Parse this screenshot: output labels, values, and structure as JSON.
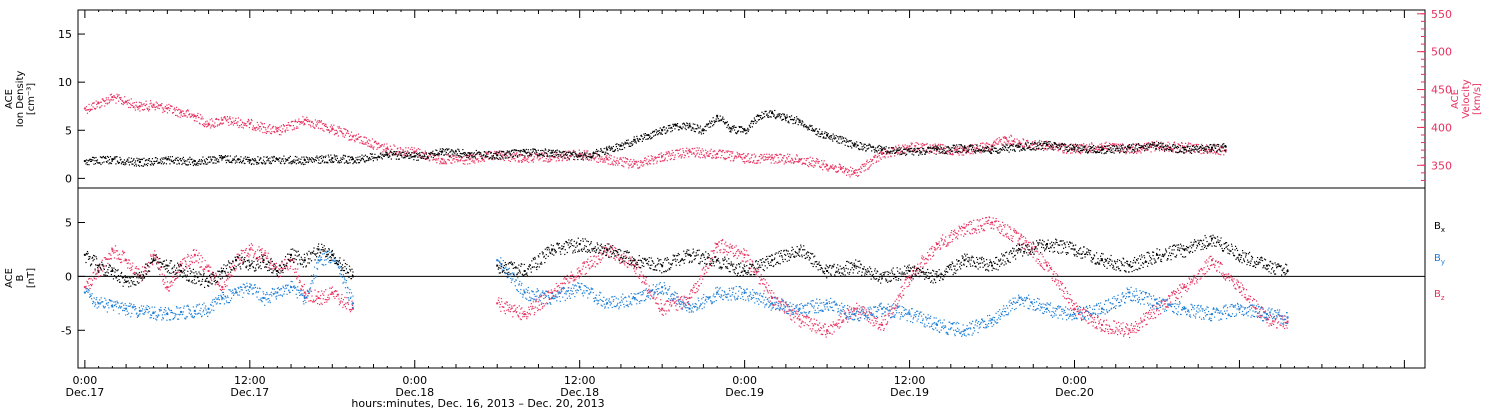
{
  "figure": {
    "xlabel": "hours:minutes, Dec. 16, 2013 – Dec. 20, 2013",
    "x_tick_times": [
      "0:00",
      "12:00",
      "0:00",
      "12:00",
      "0:00",
      "12:00",
      "0:00"
    ],
    "x_tick_dates": [
      "Dec.17",
      "Dec.17",
      "Dec.18",
      "Dec.18",
      "Dec.19",
      "Dec.19",
      "Dec.20"
    ],
    "colors": {
      "black": "#000000",
      "red": "#e8315f",
      "blue": "#1e7fd6"
    }
  },
  "chart_data": [
    {
      "type": "scatter",
      "panel": "ion-density-and-velocity",
      "left_axis_label_lines": [
        "ACE",
        "Ion Density",
        "[cm⁻³]"
      ],
      "right_axis_label_lines": [
        "ACE",
        "Velocity",
        "[km/s]"
      ],
      "left_ylim": [
        -1,
        17.5
      ],
      "left_ticks": [
        0,
        5,
        10,
        15
      ],
      "right_ylim": [
        320,
        555
      ],
      "right_ticks": [
        350,
        400,
        450,
        500,
        550
      ],
      "xlim_hours": [
        -0.5,
        97.5
      ],
      "series": [
        {
          "name": "Ion Density",
          "axis": "left",
          "color": "#000000",
          "x": [
            0,
            2,
            4,
            6,
            8,
            10,
            12,
            14,
            16,
            18,
            19.5,
            22,
            24,
            26,
            28,
            30,
            32,
            34,
            36,
            37,
            38,
            39,
            40,
            41,
            42,
            43,
            44,
            45,
            46,
            47,
            48,
            49,
            50,
            51,
            52,
            53,
            54,
            56,
            58,
            60,
            62,
            64,
            66,
            68,
            70,
            72,
            74,
            76,
            78,
            80,
            82,
            83
          ],
          "y": [
            1.8,
            2.0,
            1.7,
            2.0,
            1.8,
            2.1,
            1.9,
            2.0,
            1.9,
            2.1,
            2.0,
            2.5,
            2.3,
            2.8,
            2.6,
            2.4,
            2.8,
            2.7,
            2.3,
            2.6,
            3.0,
            3.4,
            4.0,
            4.5,
            5.0,
            5.5,
            5.5,
            5.0,
            6.5,
            5.2,
            5.0,
            6.5,
            6.8,
            6.3,
            6.0,
            5.0,
            4.5,
            3.5,
            3.0,
            2.8,
            3.0,
            3.2,
            3.0,
            3.3,
            3.5,
            3.2,
            3.0,
            3.2,
            3.4,
            3.0,
            3.2,
            3.3
          ]
        },
        {
          "name": "Velocity",
          "axis": "right",
          "color": "#e8315f",
          "x": [
            0,
            1,
            2,
            3,
            4,
            5,
            6,
            7,
            8,
            9,
            10,
            12,
            14,
            16,
            18,
            19.5,
            22,
            24,
            26,
            28,
            30,
            32,
            34,
            36,
            38,
            40,
            42,
            44,
            46,
            48,
            50,
            52,
            54,
            55,
            56,
            58,
            60,
            62,
            64,
            66,
            67,
            68,
            70,
            72,
            74,
            76,
            78,
            80,
            82,
            83
          ],
          "y": [
            425,
            432,
            440,
            434,
            428,
            430,
            425,
            420,
            415,
            405,
            410,
            405,
            395,
            410,
            398,
            388,
            372,
            368,
            358,
            358,
            364,
            360,
            362,
            365,
            358,
            352,
            362,
            368,
            365,
            360,
            360,
            358,
            350,
            345,
            340,
            365,
            375,
            372,
            370,
            376,
            386,
            380,
            376,
            372,
            375,
            372,
            376,
            374,
            372,
            370
          ]
        }
      ]
    },
    {
      "type": "scatter",
      "panel": "magnetic-field",
      "left_axis_label_lines": [
        "ACE",
        "B",
        "[nT]"
      ],
      "ylim": [
        -8.5,
        8.2
      ],
      "y_ticks": [
        -5,
        0,
        5
      ],
      "xlim_hours": [
        -0.5,
        97.5
      ],
      "series": [
        {
          "name": "Bx",
          "label_main": "B",
          "label_sub": "x",
          "color": "#000000",
          "x": [
            0,
            1,
            2,
            3,
            4,
            5,
            6,
            7,
            8,
            9,
            10,
            11,
            12,
            13,
            14,
            15,
            16,
            17,
            18,
            19.5,
            30,
            32,
            34,
            36,
            38,
            40,
            42,
            44,
            46,
            48,
            50,
            52,
            54,
            56,
            58,
            60,
            62,
            64,
            66,
            68,
            70,
            72,
            74,
            76,
            78,
            80,
            82,
            84,
            86,
            87.5
          ],
          "y": [
            2.0,
            1.0,
            0.5,
            -0.5,
            0.0,
            1.5,
            1.0,
            0.5,
            0.0,
            -0.5,
            0.5,
            1.5,
            1.0,
            1.5,
            0.5,
            2.0,
            1.5,
            2.5,
            2.0,
            0.0,
            1.0,
            0.5,
            2.5,
            3.0,
            2.5,
            1.5,
            1.0,
            2.0,
            1.5,
            0.5,
            1.5,
            2.5,
            0.5,
            1.0,
            0.0,
            0.5,
            0.0,
            1.5,
            1.0,
            2.5,
            3.0,
            2.5,
            1.5,
            1.0,
            2.0,
            2.5,
            3.5,
            2.0,
            1.0,
            0.5
          ]
        },
        {
          "name": "By",
          "label_main": "B",
          "label_sub": "y",
          "color": "#1e7fd6",
          "x": [
            0,
            1,
            2,
            3,
            4,
            5,
            6,
            7,
            8,
            9,
            10,
            11,
            12,
            13,
            14,
            15,
            16,
            17,
            18,
            19.5,
            30,
            32,
            34,
            36,
            38,
            40,
            42,
            44,
            46,
            48,
            50,
            52,
            54,
            56,
            58,
            60,
            62,
            64,
            66,
            68,
            70,
            72,
            74,
            76,
            78,
            80,
            82,
            84,
            86,
            87.5
          ],
          "y": [
            -1.5,
            -2.5,
            -2.8,
            -3.0,
            -3.2,
            -3.4,
            -3.5,
            -3.3,
            -3.2,
            -3.0,
            -2.0,
            -1.5,
            -1.0,
            -2.0,
            -1.5,
            -1.0,
            -2.0,
            1.5,
            2.0,
            -2.5,
            1.5,
            -1.5,
            -2.0,
            -1.0,
            -2.5,
            -2.0,
            -1.0,
            -3.0,
            -1.5,
            -1.5,
            -2.5,
            -3.0,
            -2.5,
            -3.5,
            -3.0,
            -3.5,
            -4.5,
            -5.0,
            -4.0,
            -2.0,
            -3.0,
            -3.5,
            -3.0,
            -1.5,
            -2.5,
            -3.0,
            -3.5,
            -3.0,
            -3.5,
            -3.8
          ]
        },
        {
          "name": "Bz",
          "label_main": "B",
          "label_sub": "z",
          "color": "#e8315f",
          "x": [
            0,
            1,
            2,
            3,
            4,
            5,
            6,
            7,
            8,
            9,
            10,
            11,
            12,
            13,
            14,
            15,
            16,
            17,
            18,
            19.5,
            30,
            32,
            34,
            36,
            38,
            40,
            42,
            44,
            46,
            48,
            50,
            52,
            54,
            56,
            58,
            60,
            62,
            64,
            66,
            68,
            70,
            72,
            74,
            76,
            78,
            80,
            82,
            84,
            86,
            87.5
          ],
          "y": [
            -1.0,
            0.5,
            2.5,
            1.5,
            0.0,
            2.0,
            -1.0,
            1.0,
            2.0,
            0.5,
            -1.0,
            1.5,
            2.5,
            2.0,
            0.5,
            1.5,
            -1.5,
            -2.0,
            -1.5,
            -3.0,
            -2.5,
            -3.5,
            -1.5,
            0.5,
            2.5,
            1.0,
            -3.0,
            -2.0,
            3.0,
            2.0,
            -2.0,
            -4.0,
            -5.0,
            -3.0,
            -4.5,
            0.0,
            3.0,
            4.5,
            5.0,
            3.5,
            1.0,
            -3.0,
            -4.5,
            -5.0,
            -3.0,
            -1.0,
            1.5,
            -1.0,
            -4.0,
            -4.2
          ]
        }
      ]
    }
  ]
}
